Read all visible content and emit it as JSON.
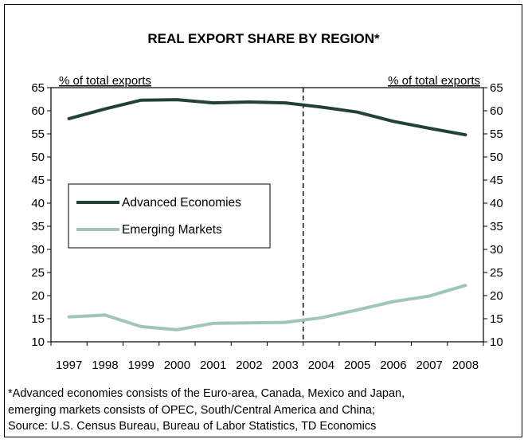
{
  "chart_data": {
    "type": "line",
    "title": "REAL EXPORT SHARE BY REGION*",
    "ylabel_left": "% of total exports",
    "ylabel_right": "% of total exports",
    "categories": [
      "1997",
      "1998",
      "1999",
      "2000",
      "2001",
      "2002",
      "2003",
      "2004",
      "2005",
      "2006",
      "2007",
      "2008"
    ],
    "ylim": [
      10,
      65
    ],
    "yticks": [
      "10",
      "15",
      "20",
      "25",
      "30",
      "35",
      "40",
      "45",
      "50",
      "55",
      "60",
      "65"
    ],
    "series": [
      {
        "name": "Advanced Economies",
        "color": "#24403c",
        "values": [
          58.3,
          60.4,
          62.3,
          62.4,
          61.7,
          61.9,
          61.7,
          60.8,
          59.7,
          57.7,
          56.2,
          54.8
        ]
      },
      {
        "name": "Emerging Markets",
        "color": "#9fc5bd",
        "values": [
          15.4,
          15.8,
          13.3,
          12.6,
          14.0,
          14.1,
          14.2,
          15.2,
          16.9,
          18.7,
          19.9,
          22.2
        ]
      }
    ],
    "reference_line": {
      "after_category": "2003",
      "style": "dashed"
    },
    "legend": "left-center",
    "grid": false
  },
  "footnote": {
    "line1": "*Advanced economies consists of the Euro-area, Canada, Mexico and Japan,",
    "line2": "emerging markets consists of OPEC, South/Central America and China;",
    "line3": "Source: U.S. Census Bureau, Bureau of Labor Statistics, TD Economics"
  }
}
